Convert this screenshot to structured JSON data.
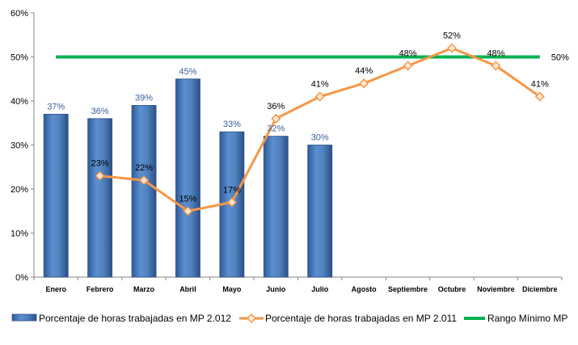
{
  "chart_data": {
    "type": "bar",
    "categories": [
      "Enero",
      "Febrero",
      "Marzo",
      "Abril",
      "Mayo",
      "Junio",
      "Julio",
      "Agosto",
      "Septiembre",
      "Octubre",
      "Noviembre",
      "Diciembre"
    ],
    "y_ticks": [
      "0%",
      "10%",
      "20%",
      "30%",
      "40%",
      "50%",
      "60%"
    ],
    "ylim": [
      0,
      60
    ],
    "grid": false,
    "legend_position": "bottom",
    "series": [
      {
        "name": "Porcentaje de horas trabajadas en MP 2.012",
        "kind": "bar",
        "values": [
          37,
          36,
          39,
          45,
          33,
          32,
          30,
          null,
          null,
          null,
          null,
          null
        ],
        "labels": [
          "37%",
          "36%",
          "39%",
          "45%",
          "33%",
          "32%",
          "30%",
          null,
          null,
          null,
          null,
          null
        ]
      },
      {
        "name": "Porcentaje de horas trabajadas en MP 2.011",
        "kind": "line",
        "values": [
          null,
          23,
          22,
          15,
          17,
          36,
          41,
          44,
          48,
          52,
          48,
          41
        ],
        "labels": [
          null,
          "23%",
          "22%",
          "15%",
          "17%",
          "36%",
          "41%",
          "44%",
          "48%",
          "52%",
          "48%",
          "41%"
        ]
      },
      {
        "name": "Rango Mínimo MP",
        "kind": "hline",
        "value": 50,
        "label": "50%"
      }
    ],
    "colors": {
      "bar": "#4f81bd",
      "bar_dark": "#2c4f86",
      "line": "#f79646",
      "marker_fill": "#fde9d9",
      "threshold": "#00b050",
      "bar_label": "#3a5f9c"
    }
  }
}
